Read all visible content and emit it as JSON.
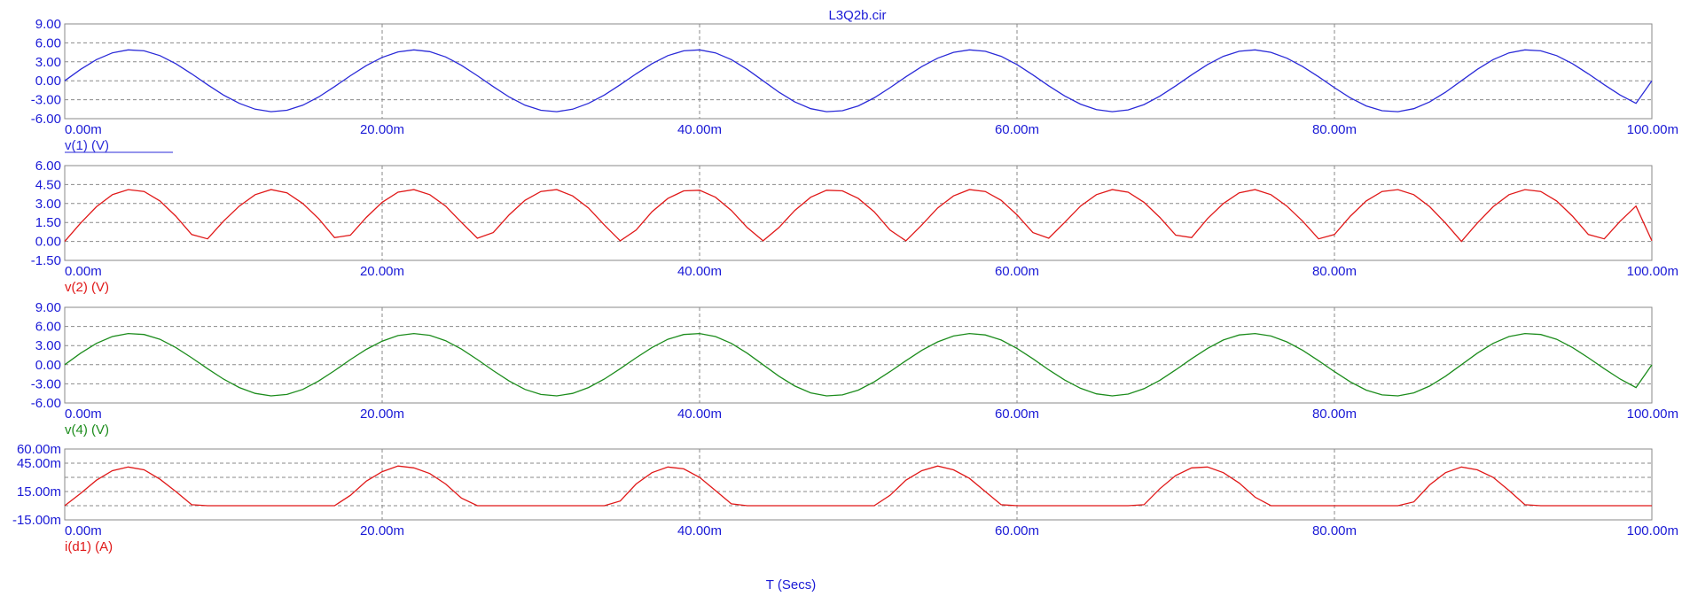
{
  "title": "L3Q2b.cir",
  "x_axis_label": "T (Secs)",
  "colors": {
    "axis_text": "#1a1ad6",
    "grid": "#8a8a8a",
    "frame": "#8a8a8a",
    "blue": "#2a2ad8",
    "red": "#e01818",
    "green": "#1c8c1c"
  },
  "chart_data": [
    {
      "type": "line",
      "series": [
        {
          "name": "v(1) (V)",
          "color": "#2a2ad8"
        }
      ],
      "xlim": [
        0,
        100
      ],
      "x_ticks": [
        "0.00m",
        "20.00m",
        "40.00m",
        "60.00m",
        "80.00m",
        "100.00m"
      ],
      "ylim": [
        -6,
        9
      ],
      "y_ticks": [
        "9.00",
        "6.00",
        "3.00",
        "0.00",
        "-3.00",
        "-6.00"
      ],
      "x": [
        0,
        1,
        2,
        3,
        4,
        5,
        6,
        7,
        8,
        9,
        10,
        11,
        12,
        13,
        14,
        15,
        16,
        17,
        18,
        19,
        20,
        21,
        22,
        23,
        24,
        25,
        26,
        27,
        28,
        29,
        30,
        31,
        32,
        33,
        34,
        35,
        36,
        37,
        38,
        39,
        40,
        41,
        42,
        43,
        44,
        45,
        46,
        47,
        48,
        49,
        50,
        51,
        52,
        53,
        54,
        55,
        56,
        57,
        58,
        59,
        60,
        61,
        62,
        63,
        64,
        65,
        66,
        67,
        68,
        69,
        70,
        71,
        72,
        73,
        74,
        75,
        76,
        77,
        78,
        79,
        80,
        81,
        82,
        83,
        84,
        85,
        86,
        87,
        88,
        89,
        90,
        91,
        92,
        93,
        94,
        95,
        96,
        97,
        98,
        99,
        100
      ],
      "y": [
        0.0,
        1.81,
        3.35,
        4.41,
        4.89,
        4.74,
        3.98,
        2.7,
        1.09,
        -0.63,
        -2.25,
        -3.58,
        -4.5,
        -4.89,
        -4.67,
        -3.87,
        -2.56,
        -0.93,
        0.8,
        2.4,
        3.7,
        4.57,
        4.89,
        4.61,
        3.77,
        2.44,
        0.8,
        -0.93,
        -2.56,
        -3.87,
        -4.67,
        -4.89,
        -4.5,
        -3.58,
        -2.25,
        -0.63,
        1.09,
        2.7,
        3.98,
        4.74,
        4.89,
        4.41,
        3.35,
        1.81,
        0.0,
        -1.81,
        -3.35,
        -4.41,
        -4.89,
        -4.74,
        -3.98,
        -2.7,
        -1.09,
        0.63,
        2.25,
        3.58,
        4.5,
        4.89,
        4.67,
        3.87,
        2.56,
        0.93,
        -0.8,
        -2.4,
        -3.7,
        -4.57,
        -4.89,
        -4.61,
        -3.77,
        -2.44,
        -0.8,
        0.93,
        2.56,
        3.87,
        4.67,
        4.89,
        4.5,
        3.58,
        2.25,
        0.63,
        -1.09,
        -2.7,
        -3.98,
        -4.74,
        -4.89,
        -4.41,
        -3.35,
        -1.81,
        0.0,
        1.81,
        3.35,
        4.41,
        4.89,
        4.74,
        3.98,
        2.7,
        1.09,
        -0.63,
        -2.25,
        -3.58,
        -0.02
      ]
    },
    {
      "type": "line",
      "series": [
        {
          "name": "v(2) (V)",
          "color": "#e01818"
        }
      ],
      "xlim": [
        0,
        100
      ],
      "x_ticks": [
        "0.00m",
        "20.00m",
        "40.00m",
        "60.00m",
        "80.00m",
        "100.00m"
      ],
      "ylim": [
        -1.5,
        6
      ],
      "y_ticks": [
        "6.00",
        "4.50",
        "3.00",
        "1.50",
        "0.00",
        "-1.50"
      ],
      "x": [
        0,
        1,
        2,
        3,
        4,
        5,
        6,
        7,
        8,
        9,
        10,
        11,
        12,
        13,
        14,
        15,
        16,
        17,
        18,
        19,
        20,
        21,
        22,
        23,
        24,
        25,
        26,
        27,
        28,
        29,
        30,
        31,
        32,
        33,
        34,
        35,
        36,
        37,
        38,
        39,
        40,
        41,
        42,
        43,
        44,
        45,
        46,
        47,
        48,
        49,
        50,
        51,
        52,
        53,
        54,
        55,
        56,
        57,
        58,
        59,
        60,
        61,
        62,
        63,
        64,
        65,
        66,
        67,
        68,
        69,
        70,
        71,
        72,
        73,
        74,
        75,
        76,
        77,
        78,
        79,
        80,
        81,
        82,
        83,
        84,
        85,
        86,
        87,
        88,
        89,
        90,
        91,
        92,
        93,
        94,
        95,
        96,
        97,
        98,
        99,
        100
      ],
      "y": [
        0.0,
        1.45,
        2.75,
        3.7,
        4.1,
        3.95,
        3.2,
        2.0,
        0.55,
        0.2,
        1.6,
        2.8,
        3.7,
        4.1,
        3.85,
        3.0,
        1.8,
        0.3,
        0.5,
        1.9,
        3.1,
        3.9,
        4.1,
        3.7,
        2.8,
        1.5,
        0.25,
        0.7,
        2.1,
        3.25,
        3.95,
        4.1,
        3.6,
        2.65,
        1.3,
        0.05,
        0.9,
        2.35,
        3.4,
        4.0,
        4.05,
        3.5,
        2.45,
        1.1,
        0.05,
        1.1,
        2.45,
        3.5,
        4.05,
        4.0,
        3.4,
        2.35,
        0.9,
        0.05,
        1.3,
        2.65,
        3.6,
        4.1,
        3.95,
        3.25,
        2.1,
        0.7,
        0.25,
        1.5,
        2.8,
        3.7,
        4.1,
        3.9,
        3.1,
        1.9,
        0.5,
        0.3,
        1.8,
        3.0,
        3.85,
        4.1,
        3.7,
        2.8,
        1.6,
        0.2,
        0.55,
        2.0,
        3.2,
        3.95,
        4.1,
        3.7,
        2.75,
        1.45,
        0.0,
        1.45,
        2.75,
        3.7,
        4.1,
        3.95,
        3.2,
        2.0,
        0.55,
        0.2,
        1.6,
        2.8,
        0.05
      ]
    },
    {
      "type": "line",
      "series": [
        {
          "name": "v(4) (V)",
          "color": "#1c8c1c"
        }
      ],
      "xlim": [
        0,
        100
      ],
      "x_ticks": [
        "0.00m",
        "20.00m",
        "40.00m",
        "60.00m",
        "80.00m",
        "100.00m"
      ],
      "ylim": [
        -6,
        9
      ],
      "y_ticks": [
        "9.00",
        "6.00",
        "3.00",
        "0.00",
        "-3.00",
        "-6.00"
      ],
      "x": [
        0,
        1,
        2,
        3,
        4,
        5,
        6,
        7,
        8,
        9,
        10,
        11,
        12,
        13,
        14,
        15,
        16,
        17,
        18,
        19,
        20,
        21,
        22,
        23,
        24,
        25,
        26,
        27,
        28,
        29,
        30,
        31,
        32,
        33,
        34,
        35,
        36,
        37,
        38,
        39,
        40,
        41,
        42,
        43,
        44,
        45,
        46,
        47,
        48,
        49,
        50,
        51,
        52,
        53,
        54,
        55,
        56,
        57,
        58,
        59,
        60,
        61,
        62,
        63,
        64,
        65,
        66,
        67,
        68,
        69,
        70,
        71,
        72,
        73,
        74,
        75,
        76,
        77,
        78,
        79,
        80,
        81,
        82,
        83,
        84,
        85,
        86,
        87,
        88,
        89,
        90,
        91,
        92,
        93,
        94,
        95,
        96,
        97,
        98,
        99,
        100
      ],
      "y": [
        0.0,
        1.81,
        3.35,
        4.41,
        4.89,
        4.74,
        3.98,
        2.7,
        1.09,
        -0.63,
        -2.25,
        -3.58,
        -4.5,
        -4.89,
        -4.67,
        -3.87,
        -2.56,
        -0.93,
        0.8,
        2.4,
        3.7,
        4.57,
        4.89,
        4.61,
        3.77,
        2.44,
        0.8,
        -0.93,
        -2.56,
        -3.87,
        -4.67,
        -4.89,
        -4.5,
        -3.58,
        -2.25,
        -0.63,
        1.09,
        2.7,
        3.98,
        4.74,
        4.89,
        4.41,
        3.35,
        1.81,
        0.0,
        -1.81,
        -3.35,
        -4.41,
        -4.89,
        -4.74,
        -3.98,
        -2.7,
        -1.09,
        0.63,
        2.25,
        3.58,
        4.5,
        4.89,
        4.67,
        3.87,
        2.56,
        0.93,
        -0.8,
        -2.4,
        -3.7,
        -4.57,
        -4.89,
        -4.61,
        -3.77,
        -2.44,
        -0.8,
        0.93,
        2.56,
        3.87,
        4.67,
        4.89,
        4.5,
        3.58,
        2.25,
        0.63,
        -1.09,
        -2.7,
        -3.98,
        -4.74,
        -4.89,
        -4.41,
        -3.35,
        -1.81,
        0.0,
        1.81,
        3.35,
        4.41,
        4.89,
        4.74,
        3.98,
        2.7,
        1.09,
        -0.63,
        -2.25,
        -3.58,
        -0.02
      ]
    },
    {
      "type": "line",
      "series": [
        {
          "name": "i(d1) (A)",
          "color": "#e01818"
        }
      ],
      "xlim": [
        0,
        100
      ],
      "x_ticks": [
        "0.00m",
        "20.00m",
        "40.00m",
        "60.00m",
        "80.00m",
        "100.00m"
      ],
      "ylim": [
        -15,
        60
      ],
      "y_ticks": [
        "60.00m",
        "45.00m",
        "15.00m",
        "-15.00m"
      ],
      "y_tick_values": [
        60,
        45,
        15,
        -15
      ],
      "y_grid_values": [
        60,
        45,
        30,
        15,
        0,
        -15
      ],
      "x": [
        0,
        1,
        2,
        3,
        4,
        5,
        6,
        7,
        8,
        9,
        10,
        11,
        12,
        13,
        14,
        15,
        16,
        17,
        18,
        19,
        20,
        21,
        22,
        23,
        24,
        25,
        26,
        27,
        28,
        29,
        30,
        31,
        32,
        33,
        34,
        35,
        36,
        37,
        38,
        39,
        40,
        41,
        42,
        43,
        44,
        45,
        46,
        47,
        48,
        49,
        50,
        51,
        52,
        53,
        54,
        55,
        56,
        57,
        58,
        59,
        60,
        61,
        62,
        63,
        64,
        65,
        66,
        67,
        68,
        69,
        70,
        71,
        72,
        73,
        74,
        75,
        76,
        77,
        78,
        79,
        80,
        81,
        82,
        83,
        84,
        85,
        86,
        87,
        88,
        89,
        90,
        91,
        92,
        93,
        94,
        95,
        96,
        97,
        98,
        99,
        100
      ],
      "y": [
        0.0,
        13.0,
        27.0,
        37.0,
        41.0,
        38.0,
        28.0,
        15.0,
        1.0,
        0.0,
        0.0,
        0.0,
        0.0,
        0.0,
        0.0,
        0.0,
        0.0,
        0.0,
        11.0,
        26.0,
        36.0,
        42.0,
        40.0,
        34.0,
        23.0,
        8.0,
        0.0,
        0.0,
        0.0,
        0.0,
        0.0,
        0.0,
        0.0,
        0.0,
        0.0,
        5.0,
        23.0,
        35.0,
        41.0,
        39.0,
        30.0,
        16.0,
        2.0,
        0.0,
        0.0,
        0.0,
        0.0,
        0.0,
        0.0,
        0.0,
        0.0,
        0.0,
        11.0,
        27.0,
        37.0,
        42.0,
        38.0,
        29.0,
        15.0,
        1.0,
        0.0,
        0.0,
        0.0,
        0.0,
        0.0,
        0.0,
        0.0,
        0.0,
        1.0,
        18.0,
        32.0,
        40.0,
        41.0,
        35.0,
        24.0,
        9.0,
        0.0,
        0.0,
        0.0,
        0.0,
        0.0,
        0.0,
        0.0,
        0.0,
        0.0,
        4.0,
        22.0,
        35.0,
        41.0,
        38.0,
        30.0,
        16.0,
        1.0,
        0.0,
        0.0,
        0.0,
        0.0,
        0.0,
        0.0,
        0.0,
        0.0
      ]
    }
  ]
}
